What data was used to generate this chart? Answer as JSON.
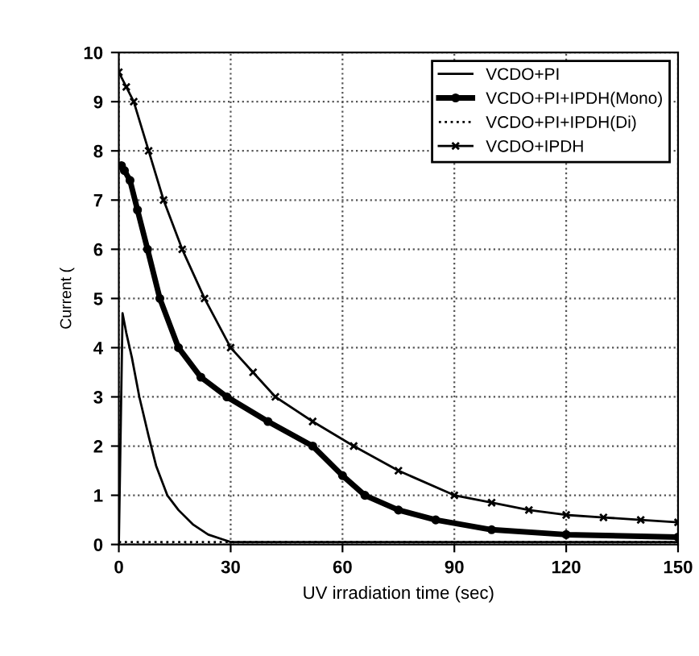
{
  "chart_data": {
    "type": "line",
    "xlabel": "UV irradiation time (sec)",
    "ylabel": "Current (",
    "xlim": [
      0,
      150
    ],
    "ylim": [
      0,
      10
    ],
    "xticks": [
      0,
      30,
      60,
      90,
      120,
      150
    ],
    "yticks": [
      0,
      1,
      2,
      3,
      4,
      5,
      6,
      7,
      8,
      9,
      10
    ],
    "grid": true,
    "legend": "top right",
    "series": [
      {
        "name": "VCDO+PI",
        "color": "#000000",
        "marker": "none",
        "line_style": "solid",
        "x": [
          0,
          1,
          2,
          3.5,
          5.5,
          8,
          10,
          13,
          16,
          20,
          24,
          28,
          30,
          40,
          60,
          90,
          120,
          150
        ],
        "values": [
          0,
          4.7,
          4.3,
          3.8,
          3,
          2.2,
          1.6,
          1,
          0.7,
          0.4,
          0.2,
          0.1,
          0.05,
          0.05,
          0.05,
          0.05,
          0.05,
          0.05
        ]
      },
      {
        "name": "VCDO+PI+IPDH(Mono)",
        "color": "#000000",
        "marker": "circle",
        "line_style": "solid",
        "x": [
          0.7,
          1.5,
          3,
          5,
          7.7,
          11,
          16,
          22,
          29,
          40,
          52,
          60,
          66,
          75,
          85,
          100,
          120,
          150
        ],
        "values": [
          7.7,
          7.6,
          7.4,
          6.8,
          6,
          5,
          4,
          3.4,
          3,
          2.5,
          2,
          1.4,
          1,
          0.7,
          0.5,
          0.3,
          0.2,
          0.15
        ]
      },
      {
        "name": "VCDO+PI+IPDH(Di)",
        "color": "#000000",
        "marker": "none",
        "line_style": "dotted",
        "x": [
          0,
          30,
          60,
          90,
          120,
          150
        ],
        "values": [
          0.05,
          0.05,
          0.05,
          0.05,
          0.05,
          0.05
        ]
      },
      {
        "name": "VCDO+IPDH",
        "color": "#000000",
        "marker": "cross",
        "line_style": "solid",
        "x": [
          0,
          2,
          4,
          8,
          12,
          17,
          23,
          30,
          36,
          42,
          52,
          63,
          75,
          90,
          100,
          110,
          120,
          130,
          140,
          150
        ],
        "values": [
          9.6,
          9.3,
          9,
          8,
          7,
          6,
          5,
          4,
          3.5,
          3,
          2.5,
          2,
          1.5,
          1,
          0.85,
          0.7,
          0.6,
          0.55,
          0.5,
          0.45
        ]
      }
    ]
  }
}
